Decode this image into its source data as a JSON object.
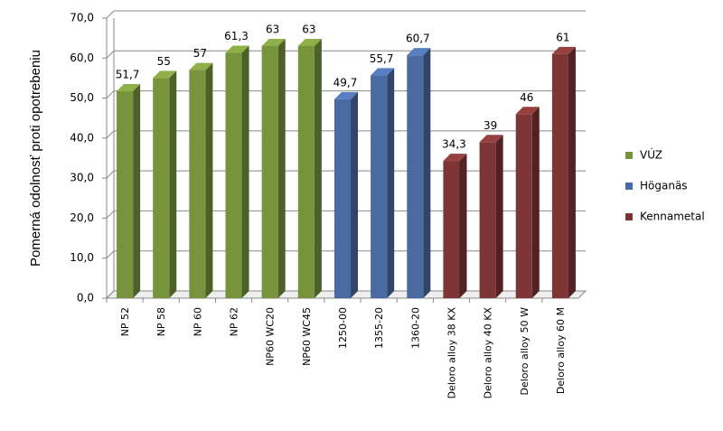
{
  "chart_data": {
    "type": "bar3d",
    "y_label": "Pomerná odolnosť proti opotrebeniu",
    "categories": [
      "NP 52",
      "NP 58",
      "NP 60",
      "NP 62",
      "NP60 WC20",
      "NP60 WC45",
      "1250-00",
      "1355-20",
      "1360-20",
      "Deloro alloy 38 KX",
      "Deloro alloy 40 KX",
      "Deloro alloy 50 W",
      "Deloro alloy 60 M"
    ],
    "series": [
      {
        "name": "VÚZ",
        "color": "#77933c",
        "values": [
          51.7,
          55,
          57,
          61.3,
          63,
          63,
          null,
          null,
          null,
          null,
          null,
          null,
          null
        ],
        "value_labels": [
          "51,7",
          "55",
          "57",
          "61,3",
          "63",
          "63",
          null,
          null,
          null,
          null,
          null,
          null,
          null
        ]
      },
      {
        "name": "Höganäs",
        "color": "#4a6aa2",
        "values": [
          null,
          null,
          null,
          null,
          null,
          null,
          49.7,
          55.7,
          60.7,
          null,
          null,
          null,
          null
        ],
        "value_labels": [
          null,
          null,
          null,
          null,
          null,
          null,
          "49,7",
          "55,7",
          "60,7",
          null,
          null,
          null,
          null
        ]
      },
      {
        "name": "Kennametal",
        "color": "#7e3535",
        "values": [
          null,
          null,
          null,
          null,
          null,
          null,
          null,
          null,
          null,
          34.3,
          39,
          46,
          61
        ],
        "value_labels": [
          null,
          null,
          null,
          null,
          null,
          null,
          null,
          null,
          null,
          "34,3",
          "39",
          "46",
          "61"
        ]
      }
    ],
    "ylim": [
      0,
      70
    ],
    "yticks": [
      {
        "value": 0,
        "label": "0,0"
      },
      {
        "value": 10,
        "label": "10,0"
      },
      {
        "value": 20,
        "label": "20,0"
      },
      {
        "value": 30,
        "label": "30,0"
      },
      {
        "value": 40,
        "label": "40,0"
      },
      {
        "value": 50,
        "label": "50,0"
      },
      {
        "value": 60,
        "label": "60,0"
      },
      {
        "value": 70,
        "label": "70,0"
      }
    ],
    "grid": true,
    "legend": "right"
  }
}
